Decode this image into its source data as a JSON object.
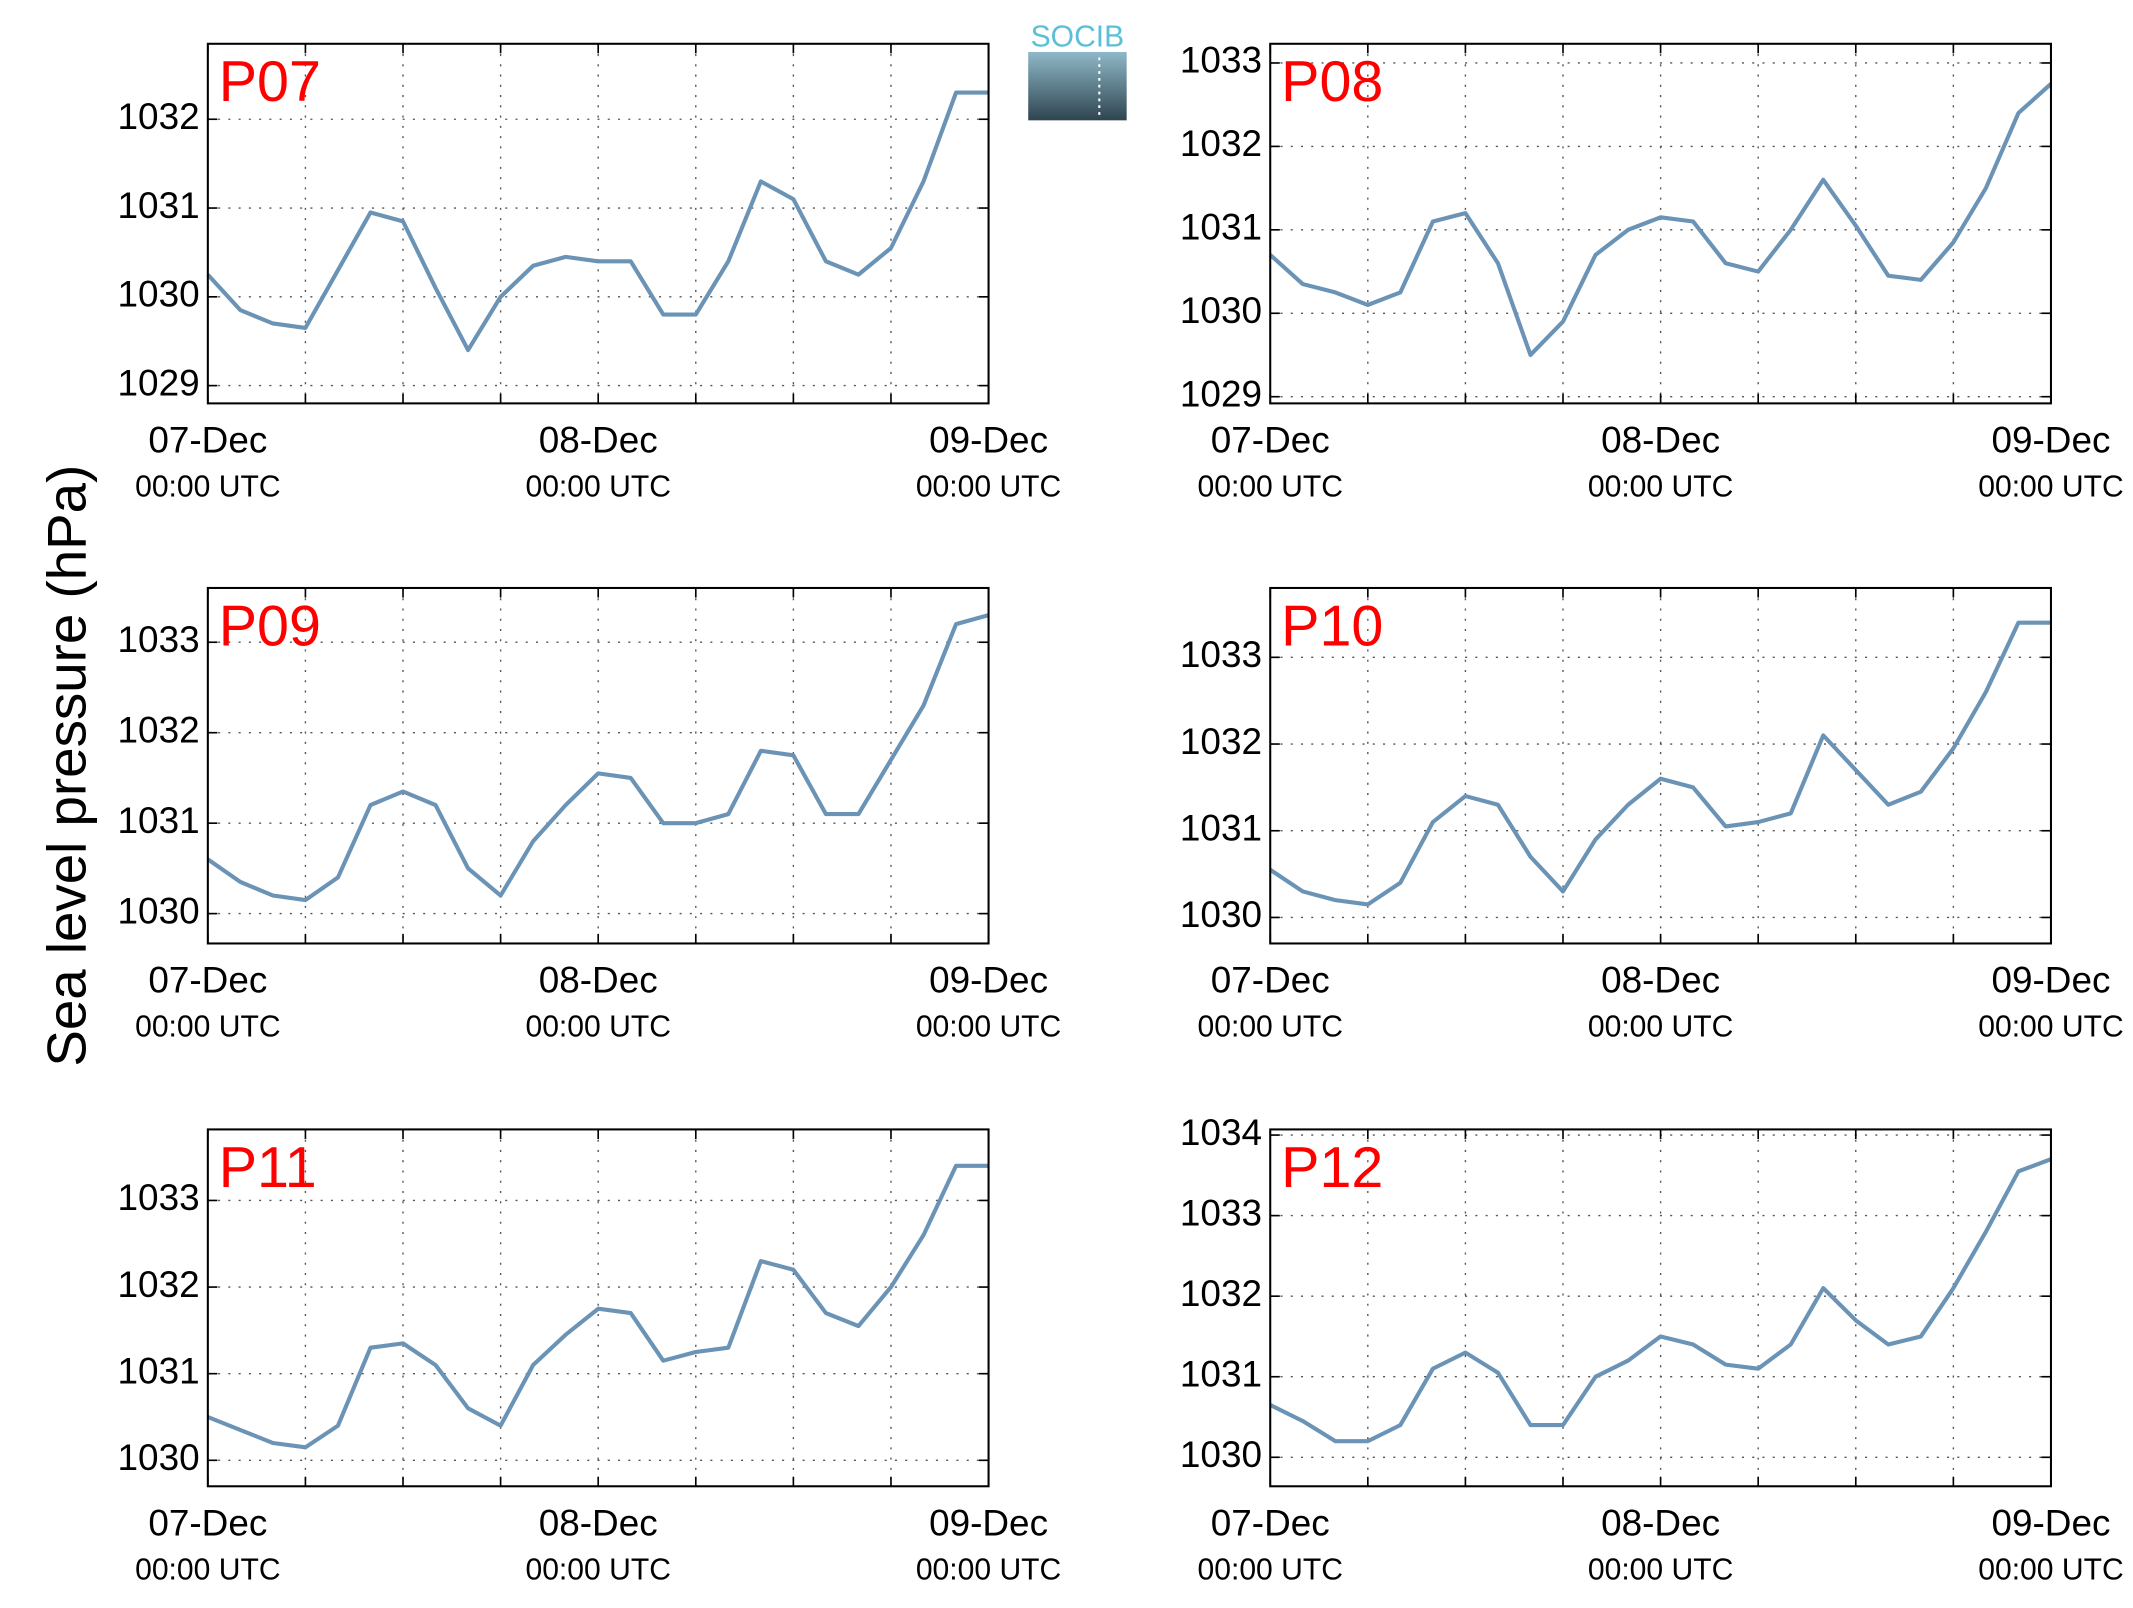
{
  "ylabel": "Sea level pressure (hPa)",
  "logo": "SOCIB",
  "chart_data": [
    {
      "type": "line",
      "title": "P07",
      "color": "#6a93b5",
      "grid": true,
      "x": [
        0,
        2,
        4,
        6,
        8,
        10,
        12,
        14,
        16,
        18,
        20,
        22,
        24,
        26,
        28,
        30,
        32,
        34,
        36,
        38,
        40,
        42,
        44,
        46,
        48
      ],
      "values": [
        1030.25,
        1029.85,
        1029.7,
        1029.65,
        1030.3,
        1030.95,
        1030.85,
        1030.1,
        1029.4,
        1030.0,
        1030.35,
        1030.45,
        1030.4,
        1030.4,
        1029.8,
        1029.8,
        1030.4,
        1031.3,
        1031.1,
        1030.4,
        1030.25,
        1030.55,
        1031.3,
        1032.3,
        1032.3
      ],
      "xlim": [
        0,
        48
      ],
      "ylim": [
        1028.8,
        1032.85
      ],
      "yticks": [
        1029,
        1030,
        1031,
        1032
      ],
      "xticks": [
        {
          "value": 0,
          "label": [
            "07-Dec",
            "00:00 UTC"
          ]
        },
        {
          "value": 24,
          "label": [
            "08-Dec",
            "00:00 UTC"
          ]
        },
        {
          "value": 48,
          "label": [
            "09-Dec",
            "00:00 UTC"
          ]
        }
      ],
      "minor_xticks": [
        6,
        12,
        18,
        30,
        36,
        42
      ]
    },
    {
      "type": "line",
      "title": "P08",
      "color": "#6a93b5",
      "grid": true,
      "x": [
        0,
        2,
        4,
        6,
        8,
        10,
        12,
        14,
        16,
        18,
        20,
        22,
        24,
        26,
        28,
        30,
        32,
        34,
        36,
        38,
        40,
        42,
        44,
        46,
        48
      ],
      "values": [
        1030.7,
        1030.35,
        1030.25,
        1030.1,
        1030.25,
        1031.1,
        1031.2,
        1030.6,
        1029.5,
        1029.9,
        1030.7,
        1031.0,
        1031.15,
        1031.1,
        1030.6,
        1030.5,
        1031.0,
        1031.6,
        1031.05,
        1030.45,
        1030.4,
        1030.85,
        1031.5,
        1032.4,
        1032.75
      ],
      "xlim": [
        0,
        48
      ],
      "ylim": [
        1028.92,
        1033.23
      ],
      "yticks": [
        1029,
        1030,
        1031,
        1032,
        1033
      ],
      "xticks": [
        {
          "value": 0,
          "label": [
            "07-Dec",
            "00:00 UTC"
          ]
        },
        {
          "value": 24,
          "label": [
            "08-Dec",
            "00:00 UTC"
          ]
        },
        {
          "value": 48,
          "label": [
            "09-Dec",
            "00:00 UTC"
          ]
        }
      ],
      "minor_xticks": [
        6,
        12,
        18,
        30,
        36,
        42
      ]
    },
    {
      "type": "line",
      "title": "P09",
      "color": "#6a93b5",
      "grid": true,
      "x": [
        0,
        2,
        4,
        6,
        8,
        10,
        12,
        14,
        16,
        18,
        20,
        22,
        24,
        26,
        28,
        30,
        32,
        34,
        36,
        38,
        40,
        42,
        44,
        46,
        48
      ],
      "values": [
        1030.6,
        1030.35,
        1030.2,
        1030.15,
        1030.4,
        1031.2,
        1031.35,
        1031.2,
        1030.5,
        1030.2,
        1030.8,
        1031.2,
        1031.55,
        1031.5,
        1031.0,
        1031.0,
        1031.1,
        1031.8,
        1031.75,
        1031.1,
        1031.1,
        1031.7,
        1032.3,
        1033.2,
        1033.3
      ],
      "xlim": [
        0,
        48
      ],
      "ylim": [
        1029.67,
        1033.6
      ],
      "yticks": [
        1030,
        1031,
        1032,
        1033
      ],
      "xticks": [
        {
          "value": 0,
          "label": [
            "07-Dec",
            "00:00 UTC"
          ]
        },
        {
          "value": 24,
          "label": [
            "08-Dec",
            "00:00 UTC"
          ]
        },
        {
          "value": 48,
          "label": [
            "09-Dec",
            "00:00 UTC"
          ]
        }
      ],
      "minor_xticks": [
        6,
        12,
        18,
        30,
        36,
        42
      ]
    },
    {
      "type": "line",
      "title": "P10",
      "color": "#6a93b5",
      "grid": true,
      "x": [
        0,
        2,
        4,
        6,
        8,
        10,
        12,
        14,
        16,
        18,
        20,
        22,
        24,
        26,
        28,
        30,
        32,
        34,
        36,
        38,
        40,
        42,
        44,
        46,
        48
      ],
      "values": [
        1030.55,
        1030.3,
        1030.2,
        1030.15,
        1030.4,
        1031.1,
        1031.4,
        1031.3,
        1030.7,
        1030.3,
        1030.9,
        1031.3,
        1031.6,
        1031.5,
        1031.05,
        1031.1,
        1031.2,
        1032.1,
        1031.7,
        1031.3,
        1031.45,
        1031.95,
        1032.6,
        1033.4,
        1033.4
      ],
      "xlim": [
        0,
        48
      ],
      "ylim": [
        1029.7,
        1033.8
      ],
      "yticks": [
        1030,
        1031,
        1032,
        1033
      ],
      "xticks": [
        {
          "value": 0,
          "label": [
            "07-Dec",
            "00:00 UTC"
          ]
        },
        {
          "value": 24,
          "label": [
            "08-Dec",
            "00:00 UTC"
          ]
        },
        {
          "value": 48,
          "label": [
            "09-Dec",
            "00:00 UTC"
          ]
        }
      ],
      "minor_xticks": [
        6,
        12,
        18,
        30,
        36,
        42
      ]
    },
    {
      "type": "line",
      "title": "P11",
      "color": "#6a93b5",
      "grid": true,
      "x": [
        0,
        2,
        4,
        6,
        8,
        10,
        12,
        14,
        16,
        18,
        20,
        22,
        24,
        26,
        28,
        30,
        32,
        34,
        36,
        38,
        40,
        42,
        44,
        46,
        48
      ],
      "values": [
        1030.5,
        1030.35,
        1030.2,
        1030.15,
        1030.4,
        1031.3,
        1031.35,
        1031.1,
        1030.6,
        1030.4,
        1031.1,
        1031.45,
        1031.75,
        1031.7,
        1031.15,
        1031.25,
        1031.3,
        1032.3,
        1032.2,
        1031.7,
        1031.55,
        1032.0,
        1032.6,
        1033.4,
        1033.4
      ],
      "xlim": [
        0,
        48
      ],
      "ylim": [
        1029.7,
        1033.82
      ],
      "yticks": [
        1030,
        1031,
        1032,
        1033
      ],
      "xticks": [
        {
          "value": 0,
          "label": [
            "07-Dec",
            "00:00 UTC"
          ]
        },
        {
          "value": 24,
          "label": [
            "08-Dec",
            "00:00 UTC"
          ]
        },
        {
          "value": 48,
          "label": [
            "09-Dec",
            "00:00 UTC"
          ]
        }
      ],
      "minor_xticks": [
        6,
        12,
        18,
        30,
        36,
        42
      ]
    },
    {
      "type": "line",
      "title": "P12",
      "color": "#6a93b5",
      "grid": true,
      "x": [
        0,
        2,
        4,
        6,
        8,
        10,
        12,
        14,
        16,
        18,
        20,
        22,
        24,
        26,
        28,
        30,
        32,
        34,
        36,
        38,
        40,
        42,
        44,
        46,
        48
      ],
      "values": [
        1030.65,
        1030.45,
        1030.2,
        1030.2,
        1030.4,
        1031.1,
        1031.3,
        1031.05,
        1030.4,
        1030.4,
        1031.0,
        1031.2,
        1031.5,
        1031.4,
        1031.15,
        1031.1,
        1031.4,
        1032.1,
        1031.7,
        1031.4,
        1031.5,
        1032.1,
        1032.8,
        1033.55,
        1033.7
      ],
      "xlim": [
        0,
        48
      ],
      "ylim": [
        1029.64,
        1034.07
      ],
      "yticks": [
        1030,
        1031,
        1032,
        1033,
        1034
      ],
      "xticks": [
        {
          "value": 0,
          "label": [
            "07-Dec",
            "00:00 UTC"
          ]
        },
        {
          "value": 24,
          "label": [
            "08-Dec",
            "00:00 UTC"
          ]
        },
        {
          "value": 48,
          "label": [
            "09-Dec",
            "00:00 UTC"
          ]
        }
      ],
      "minor_xticks": [
        6,
        12,
        18,
        30,
        36,
        42
      ]
    }
  ]
}
